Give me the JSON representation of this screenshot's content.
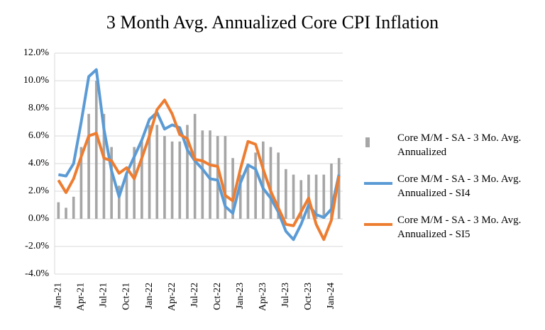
{
  "chart_data": {
    "type": "bar-line",
    "title": "3 Month Avg. Annualized Core CPI Inflation",
    "categories": [
      "Jan-21",
      null,
      null,
      "Apr-21",
      null,
      null,
      "Jul-21",
      null,
      null,
      "Oct-21",
      null,
      null,
      "Jan-22",
      null,
      null,
      "Apr-22",
      null,
      null,
      "Jul-22",
      null,
      null,
      "Oct-22",
      null,
      null,
      "Jan-23",
      null,
      null,
      "Apr-23",
      null,
      null,
      "Jul-23",
      null,
      null,
      "Oct-23",
      null,
      null,
      "Jan-24",
      null
    ],
    "series": [
      {
        "name": "Core M/M - SA - 3 Mo. Avg. Annualized",
        "type": "bar",
        "color": "#a6a6a6",
        "values": [
          1.2,
          0.8,
          1.6,
          5.2,
          7.6,
          10.0,
          7.6,
          5.2,
          2.4,
          3.2,
          5.2,
          5.6,
          6.8,
          6.8,
          6.0,
          5.6,
          5.6,
          6.8,
          7.6,
          6.4,
          6.4,
          6.0,
          6.0,
          4.4,
          3.2,
          4.0,
          4.8,
          5.6,
          5.2,
          4.8,
          3.6,
          3.2,
          2.8,
          3.2,
          3.2,
          3.2,
          4.0,
          4.4
        ]
      },
      {
        "name": "Core M/M - SA - 3 Mo. Avg. Annualized - SI4",
        "type": "line",
        "color": "#5b9bd5",
        "values": [
          3.2,
          3.1,
          4.0,
          7.0,
          10.3,
          10.8,
          6.5,
          3.5,
          1.6,
          3.3,
          4.5,
          5.7,
          7.2,
          7.7,
          6.5,
          6.8,
          6.6,
          5.0,
          4.2,
          3.6,
          2.9,
          2.8,
          0.9,
          0.4,
          2.6,
          3.9,
          3.6,
          2.2,
          1.5,
          0.5,
          -0.9,
          -1.5,
          -0.4,
          1.0,
          0.3,
          0.1,
          0.7,
          3.2
        ]
      },
      {
        "name": "Core M/M - SA - 3 Mo. Avg. Annualized - SI5",
        "type": "line",
        "color": "#ed7d31",
        "values": [
          2.8,
          1.9,
          2.9,
          4.5,
          6.0,
          6.2,
          4.4,
          4.2,
          3.3,
          3.7,
          2.9,
          4.4,
          6.0,
          7.9,
          8.6,
          7.6,
          6.1,
          5.8,
          4.3,
          4.2,
          3.9,
          3.8,
          1.7,
          1.3,
          3.6,
          5.6,
          5.4,
          3.6,
          2.0,
          0.8,
          -0.4,
          -0.5,
          0.5,
          1.5,
          -0.4,
          -1.5,
          -0.1,
          3.1
        ]
      }
    ],
    "ylim": [
      -4,
      12
    ],
    "yticks": [
      {
        "value": -4,
        "label": "-4.0%"
      },
      {
        "value": -2,
        "label": "-2.0%"
      },
      {
        "value": 0,
        "label": "0.0%"
      },
      {
        "value": 2,
        "label": "2.0%"
      },
      {
        "value": 4,
        "label": "4.0%"
      },
      {
        "value": 6,
        "label": "6.0%"
      },
      {
        "value": 8,
        "label": "8.0%"
      },
      {
        "value": 10,
        "label": "10.0%"
      },
      {
        "value": 12,
        "label": "12.0%"
      }
    ],
    "grid": true
  }
}
